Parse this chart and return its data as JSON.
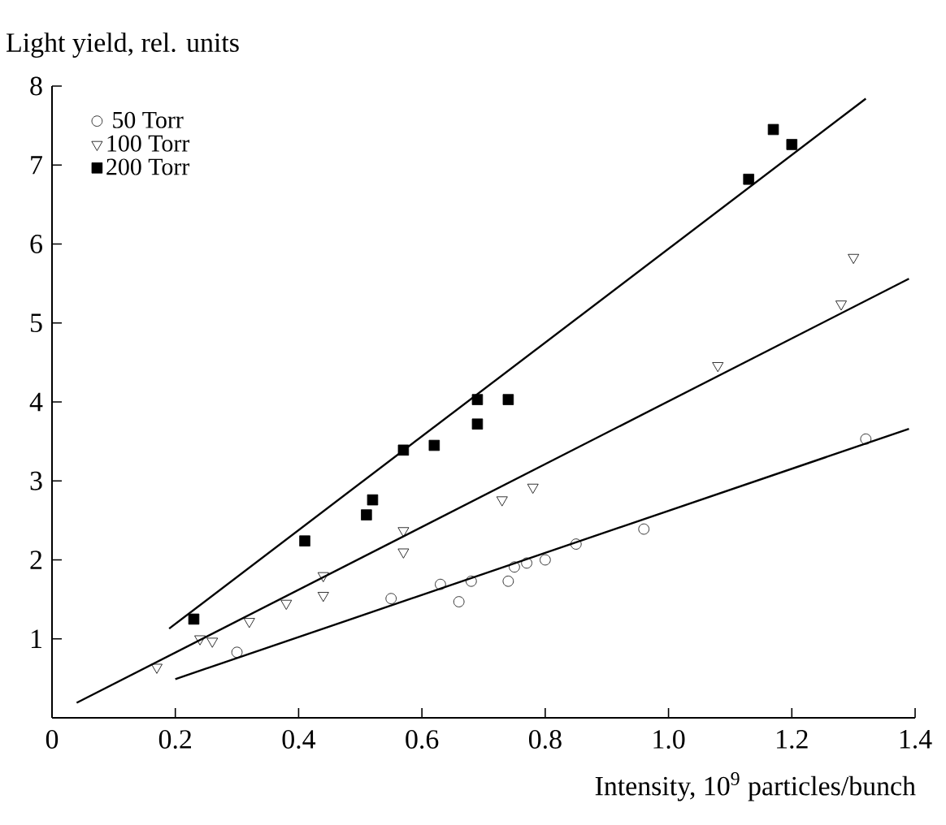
{
  "chart_data": {
    "type": "scatter",
    "xlabel": "Intensity, 10$^{9}$ particles/bunch",
    "ylabel": "Light yield, rel. units",
    "xlim": [
      0,
      1.4
    ],
    "xticks": [
      0,
      {
        "value": 0.2,
        "label": "0.2"
      },
      {
        "value": 0.4,
        "label": "0.4"
      },
      {
        "value": 0.6,
        "label": "0.6"
      },
      {
        "value": 0.8,
        "label": "0.8"
      },
      {
        "value": 1.0,
        "label": "1.0"
      },
      {
        "value": 1.2,
        "label": "1.2"
      },
      {
        "value": 1.4,
        "label": "1.4"
      }
    ],
    "ylim": [
      0,
      8
    ],
    "yticks": [
      1,
      2,
      3,
      4,
      5,
      6,
      7,
      8
    ],
    "grid": false,
    "legend": "top left",
    "series": [
      {
        "name": "50 Torr",
        "color": "#000000",
        "marker": "circle",
        "x": [
          0.3,
          0.55,
          0.63,
          0.66,
          0.68,
          0.74,
          0.75,
          0.77,
          0.8,
          0.85,
          0.96,
          1.32
        ],
        "values": [
          0.83,
          1.51,
          1.69,
          1.47,
          1.73,
          1.73,
          1.91,
          1.96,
          2.0,
          2.2,
          2.39,
          3.53
        ]
      },
      {
        "name": "100 Torr",
        "color": "#000000",
        "marker": "triangle",
        "x": [
          0.17,
          0.24,
          0.26,
          0.32,
          0.38,
          0.44,
          0.44,
          0.57,
          0.57,
          0.73,
          0.78,
          1.08,
          1.28,
          1.3
        ],
        "values": [
          0.64,
          1.0,
          0.97,
          1.22,
          1.45,
          1.55,
          1.8,
          2.1,
          2.37,
          2.76,
          2.92,
          4.46,
          5.24,
          5.83
        ]
      },
      {
        "name": "200 Torr",
        "color": "#000000",
        "marker": "square",
        "x": [
          0.23,
          0.41,
          0.51,
          0.52,
          0.57,
          0.62,
          0.69,
          0.69,
          0.74,
          1.13,
          1.17,
          1.2
        ],
        "values": [
          1.25,
          2.24,
          2.57,
          2.76,
          3.39,
          3.45,
          3.72,
          4.03,
          4.03,
          6.82,
          7.45,
          7.26
        ]
      },
      {
        "type": "line",
        "color": "#000000",
        "marker": "none",
        "line_style": "solid",
        "x": [
          0.2,
          1.39
        ],
        "values": [
          0.49,
          3.66
        ]
      },
      {
        "type": "line",
        "color": "#000000",
        "marker": "none",
        "line_style": "solid",
        "x": [
          0.04,
          1.39
        ],
        "values": [
          0.19,
          5.56
        ]
      },
      {
        "type": "line",
        "color": "#000000",
        "marker": "none",
        "line_style": "solid",
        "x": [
          0.19,
          1.32
        ],
        "values": [
          1.13,
          7.84
        ]
      }
    ]
  }
}
